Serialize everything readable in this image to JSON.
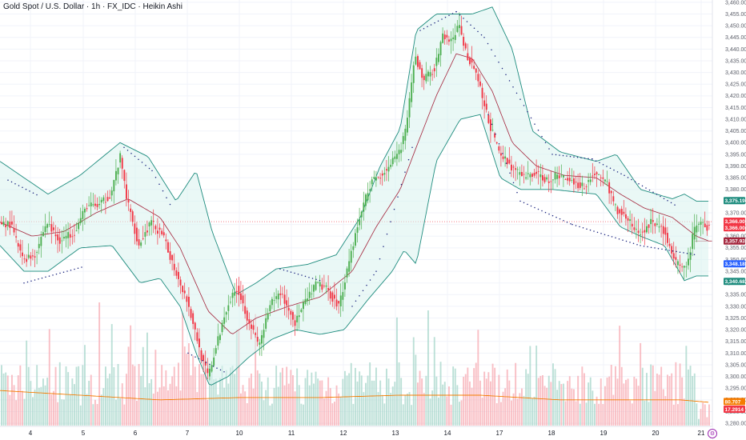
{
  "header": {
    "title": "Gold Spot / U.S. Dollar · 1h · FX_IDC · Heikin Ashi"
  },
  "colors": {
    "up": "#26a69a",
    "up_body": "#4caf50",
    "down": "#f23645",
    "band": "#1e8c7e",
    "band_fill": "#d8f2ee",
    "basis": "#a3243b",
    "sar": "#1a237e",
    "vol_up": "#a5d6c9",
    "vol_down": "#f7a9b1",
    "vol_ma": "#f57c00",
    "grid": "#f0f3fa"
  },
  "settings_icon": "gear-icon",
  "chart_data": {
    "type": "candlestick",
    "instrument": "Gold Spot / U.S. Dollar",
    "interval": "1h",
    "source": "FX_IDC",
    "style": "Heikin Ashi",
    "y_axis": {
      "side": "right",
      "ylim": [
        3279,
        3461
      ],
      "ticks": [
        3460,
        3455,
        3450,
        3445,
        3440,
        3435,
        3430,
        3425,
        3420,
        3415,
        3410,
        3405,
        3400,
        3395,
        3390,
        3385,
        3380,
        3375,
        3370,
        3365,
        3360,
        3355,
        3350,
        3345,
        3340,
        3335,
        3330,
        3325,
        3320,
        3315,
        3310,
        3305,
        3300,
        3295,
        3290,
        3285,
        3280
      ],
      "tick_format": "3,000.000"
    },
    "x_axis": {
      "labels": [
        {
          "label": "4",
          "pos": 38
        },
        {
          "label": "5",
          "pos": 104
        },
        {
          "label": "6",
          "pos": 169
        },
        {
          "label": "7",
          "pos": 234
        },
        {
          "label": "10",
          "pos": 299
        },
        {
          "label": "11",
          "pos": 364
        },
        {
          "label": "12",
          "pos": 429
        },
        {
          "label": "13",
          "pos": 494
        },
        {
          "label": "14",
          "pos": 559
        },
        {
          "label": "17",
          "pos": 624
        },
        {
          "label": "18",
          "pos": 689
        },
        {
          "label": "19",
          "pos": 754
        },
        {
          "label": "20",
          "pos": 819
        },
        {
          "label": "21",
          "pos": 876
        }
      ]
    },
    "price_keypoints": [
      [
        0,
        3366
      ],
      [
        15,
        3365
      ],
      [
        30,
        3350
      ],
      [
        45,
        3352
      ],
      [
        60,
        3366
      ],
      [
        75,
        3358
      ],
      [
        95,
        3362
      ],
      [
        110,
        3373
      ],
      [
        125,
        3373
      ],
      [
        140,
        3378
      ],
      [
        152,
        3394
      ],
      [
        160,
        3376
      ],
      [
        175,
        3356
      ],
      [
        190,
        3366
      ],
      [
        205,
        3360
      ],
      [
        220,
        3346
      ],
      [
        235,
        3333
      ],
      [
        245,
        3320
      ],
      [
        255,
        3306
      ],
      [
        262,
        3300
      ],
      [
        272,
        3313
      ],
      [
        285,
        3330
      ],
      [
        298,
        3338
      ],
      [
        310,
        3326
      ],
      [
        325,
        3313
      ],
      [
        340,
        3331
      ],
      [
        352,
        3336
      ],
      [
        370,
        3323
      ],
      [
        385,
        3333
      ],
      [
        398,
        3340
      ],
      [
        410,
        3337
      ],
      [
        425,
        3330
      ],
      [
        440,
        3353
      ],
      [
        455,
        3373
      ],
      [
        465,
        3383
      ],
      [
        480,
        3387
      ],
      [
        500,
        3395
      ],
      [
        510,
        3408
      ],
      [
        520,
        3437
      ],
      [
        530,
        3427
      ],
      [
        545,
        3432
      ],
      [
        555,
        3446
      ],
      [
        565,
        3443
      ],
      [
        575,
        3450
      ],
      [
        585,
        3437
      ],
      [
        595,
        3432
      ],
      [
        605,
        3418
      ],
      [
        615,
        3406
      ],
      [
        625,
        3396
      ],
      [
        640,
        3390
      ],
      [
        655,
        3385
      ],
      [
        670,
        3387
      ],
      [
        685,
        3384
      ],
      [
        700,
        3386
      ],
      [
        715,
        3384
      ],
      [
        730,
        3381
      ],
      [
        745,
        3387
      ],
      [
        760,
        3383
      ],
      [
        770,
        3372
      ],
      [
        785,
        3368
      ],
      [
        800,
        3360
      ],
      [
        815,
        3366
      ],
      [
        830,
        3363
      ],
      [
        845,
        3349
      ],
      [
        855,
        3345
      ],
      [
        862,
        3350
      ],
      [
        868,
        3362
      ],
      [
        875,
        3366
      ],
      [
        885,
        3364
      ]
    ],
    "bollinger_keypoints": {
      "upper": [
        [
          0,
          3392
        ],
        [
          30,
          3385
        ],
        [
          60,
          3378
        ],
        [
          100,
          3386
        ],
        [
          150,
          3400
        ],
        [
          185,
          3394
        ],
        [
          220,
          3375
        ],
        [
          245,
          3388
        ],
        [
          265,
          3362
        ],
        [
          295,
          3335
        ],
        [
          320,
          3340
        ],
        [
          345,
          3346
        ],
        [
          385,
          3348
        ],
        [
          420,
          3352
        ],
        [
          450,
          3368
        ],
        [
          475,
          3390
        ],
        [
          500,
          3406
        ],
        [
          520,
          3448
        ],
        [
          545,
          3455
        ],
        [
          565,
          3455
        ],
        [
          590,
          3455
        ],
        [
          615,
          3458
        ],
        [
          640,
          3440
        ],
        [
          665,
          3405
        ],
        [
          700,
          3396
        ],
        [
          745,
          3392
        ],
        [
          770,
          3395
        ],
        [
          800,
          3380
        ],
        [
          840,
          3376
        ],
        [
          855,
          3378
        ],
        [
          870,
          3375
        ],
        [
          885,
          3375
        ]
      ],
      "basis": [
        [
          0,
          3366
        ],
        [
          40,
          3360
        ],
        [
          80,
          3362
        ],
        [
          120,
          3370
        ],
        [
          160,
          3376
        ],
        [
          200,
          3368
        ],
        [
          225,
          3355
        ],
        [
          260,
          3328
        ],
        [
          290,
          3318
        ],
        [
          320,
          3325
        ],
        [
          360,
          3330
        ],
        [
          400,
          3334
        ],
        [
          440,
          3345
        ],
        [
          470,
          3364
        ],
        [
          500,
          3380
        ],
        [
          520,
          3398
        ],
        [
          545,
          3420
        ],
        [
          570,
          3438
        ],
        [
          590,
          3436
        ],
        [
          615,
          3422
        ],
        [
          640,
          3400
        ],
        [
          670,
          3390
        ],
        [
          705,
          3386
        ],
        [
          745,
          3385
        ],
        [
          775,
          3378
        ],
        [
          805,
          3372
        ],
        [
          840,
          3368
        ],
        [
          870,
          3360
        ],
        [
          885,
          3358
        ]
      ],
      "lower": [
        [
          0,
          3356
        ],
        [
          30,
          3345
        ],
        [
          60,
          3345
        ],
        [
          100,
          3355
        ],
        [
          140,
          3356
        ],
        [
          175,
          3340
        ],
        [
          200,
          3342
        ],
        [
          225,
          3330
        ],
        [
          245,
          3310
        ],
        [
          262,
          3296
        ],
        [
          285,
          3300
        ],
        [
          310,
          3308
        ],
        [
          340,
          3316
        ],
        [
          370,
          3320
        ],
        [
          400,
          3318
        ],
        [
          430,
          3320
        ],
        [
          460,
          3333
        ],
        [
          490,
          3345
        ],
        [
          505,
          3354
        ],
        [
          520,
          3348
        ],
        [
          545,
          3392
        ],
        [
          575,
          3410
        ],
        [
          600,
          3412
        ],
        [
          625,
          3385
        ],
        [
          650,
          3380
        ],
        [
          690,
          3380
        ],
        [
          745,
          3378
        ],
        [
          775,
          3364
        ],
        [
          800,
          3360
        ],
        [
          830,
          3356
        ],
        [
          855,
          3341
        ],
        [
          870,
          3343
        ],
        [
          885,
          3343
        ]
      ]
    },
    "volume_ma_keypoints": [
      [
        0,
        3294
      ],
      [
        100,
        3292
      ],
      [
        200,
        3290
      ],
      [
        300,
        3291
      ],
      [
        400,
        3291
      ],
      [
        500,
        3292
      ],
      [
        600,
        3292
      ],
      [
        700,
        3290
      ],
      [
        800,
        3290
      ],
      [
        850,
        3290
      ],
      [
        885,
        3289
      ]
    ],
    "sar_keypoints": {
      "above": [
        [
          10,
          3384
        ],
        [
          50,
          3377
        ],
        [
          155,
          3398
        ],
        [
          190,
          3388
        ],
        [
          215,
          3372
        ],
        [
          350,
          3346
        ],
        [
          400,
          3341
        ],
        [
          525,
          3448
        ],
        [
          570,
          3456
        ],
        [
          605,
          3445
        ],
        [
          690,
          3395
        ],
        [
          740,
          3393
        ],
        [
          780,
          3386
        ],
        [
          845,
          3373
        ]
      ],
      "below": [
        [
          30,
          3340
        ],
        [
          105,
          3347
        ],
        [
          235,
          3310
        ],
        [
          280,
          3302
        ],
        [
          440,
          3330
        ],
        [
          470,
          3345
        ],
        [
          515,
          3398
        ],
        [
          610,
          3412
        ],
        [
          650,
          3375
        ],
        [
          715,
          3365
        ],
        [
          800,
          3356
        ],
        [
          870,
          3352
        ]
      ]
    },
    "price_tags": [
      {
        "value": "3,375.192",
        "price": 3375.192,
        "color": "#1e8c7e"
      },
      {
        "value": "3,366.009",
        "price": 3366.4,
        "color": "#f23645"
      },
      {
        "value": "3,366.008",
        "price": 3363.6,
        "color": "#f23645"
      },
      {
        "value": "3,357.937",
        "price": 3357.937,
        "color": "#a3243b"
      },
      {
        "value": "3,348.181",
        "price": 3348.181,
        "color": "#2962ff"
      },
      {
        "value": "3,340.681",
        "price": 3340.681,
        "color": "#1e8c7e"
      },
      {
        "value": "80.707",
        "price": 3289.3,
        "color": "#f57c00"
      },
      {
        "value": "17.2914",
        "price": 3286.0,
        "color": "#f23645"
      }
    ]
  }
}
